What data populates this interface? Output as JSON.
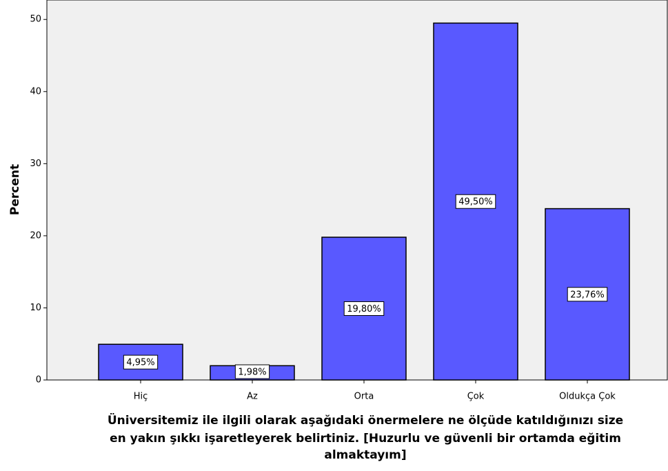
{
  "chart_data": {
    "type": "bar",
    "y_label": "Percent",
    "x_label": [
      "Üniversitemiz ile ilgili olarak aşağıdaki önermelere ne ölçüde katıldığınızı size",
      "en yakın şıkkı işaretleyerek belirtiniz. [Huzurlu ve güvenli bir ortamda eğitim",
      "almaktayım]"
    ],
    "categories": [
      "Hiç",
      "Az",
      "Orta",
      "Çok",
      "Oldukça Çok"
    ],
    "values": [
      4.95,
      1.98,
      19.8,
      49.5,
      23.76
    ],
    "value_labels": [
      "4,95%",
      "1,98%",
      "19,80%",
      "49,50%",
      "23,76%"
    ],
    "color": "#5959ff",
    "ylim": [
      0,
      52.7
    ],
    "yticks": [
      0,
      10,
      20,
      30,
      40,
      50
    ]
  }
}
